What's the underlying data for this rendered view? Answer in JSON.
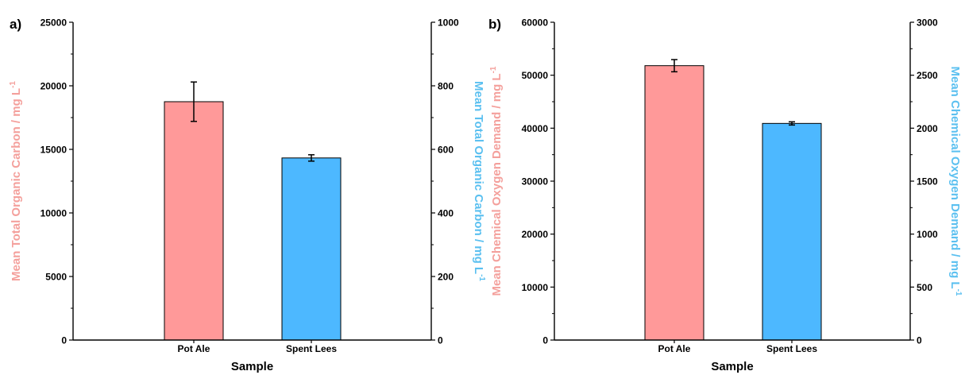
{
  "colors": {
    "left_series": "#ff9999",
    "right_series": "#4db8ff",
    "left_label": "#f4a09c",
    "right_label": "#5bc0f0",
    "axis": "#000000"
  },
  "chart_data": [
    {
      "panel_label": "a)",
      "type": "bar",
      "categories": [
        "Pot Ale",
        "Spent Lees"
      ],
      "xlabel": "Sample",
      "ylabel_left": "Mean Total Organic Carbon / mg L",
      "ylabel_right": "Mean Total Organic Carbon / mg L",
      "ylabel_superscript": "-1",
      "ylim_left": [
        0,
        25000
      ],
      "ylim_right": [
        0,
        1000
      ],
      "yticks_left": [
        "0",
        "5000",
        "10000",
        "15000",
        "20000",
        "25000"
      ],
      "yticks_right": [
        "0",
        "200",
        "400",
        "600",
        "800",
        "1000"
      ],
      "series": [
        {
          "axis": "left",
          "category": "Pot Ale",
          "value": 18750,
          "error": 1550
        },
        {
          "axis": "right",
          "category": "Spent Lees",
          "value": 573,
          "error": 10
        }
      ]
    },
    {
      "panel_label": "b)",
      "type": "bar",
      "categories": [
        "Pot Ale",
        "Spent Lees"
      ],
      "xlabel": "Sample",
      "ylabel_left": "Mean Chemical Oxygen Demand / mg L",
      "ylabel_right": "Mean Chemical Oxygen Demand / mg L",
      "ylabel_superscript": "-1",
      "ylim_left": [
        0,
        60000
      ],
      "ylim_right": [
        0,
        3000
      ],
      "yticks_left": [
        "0",
        "10000",
        "20000",
        "30000",
        "40000",
        "50000",
        "60000"
      ],
      "yticks_right": [
        "0",
        "500",
        "1000",
        "1500",
        "2000",
        "2500",
        "3000"
      ],
      "series": [
        {
          "axis": "left",
          "category": "Pot Ale",
          "value": 51800,
          "error": 1150
        },
        {
          "axis": "right",
          "category": "Spent Lees",
          "value": 2045,
          "error": 15
        }
      ]
    }
  ]
}
